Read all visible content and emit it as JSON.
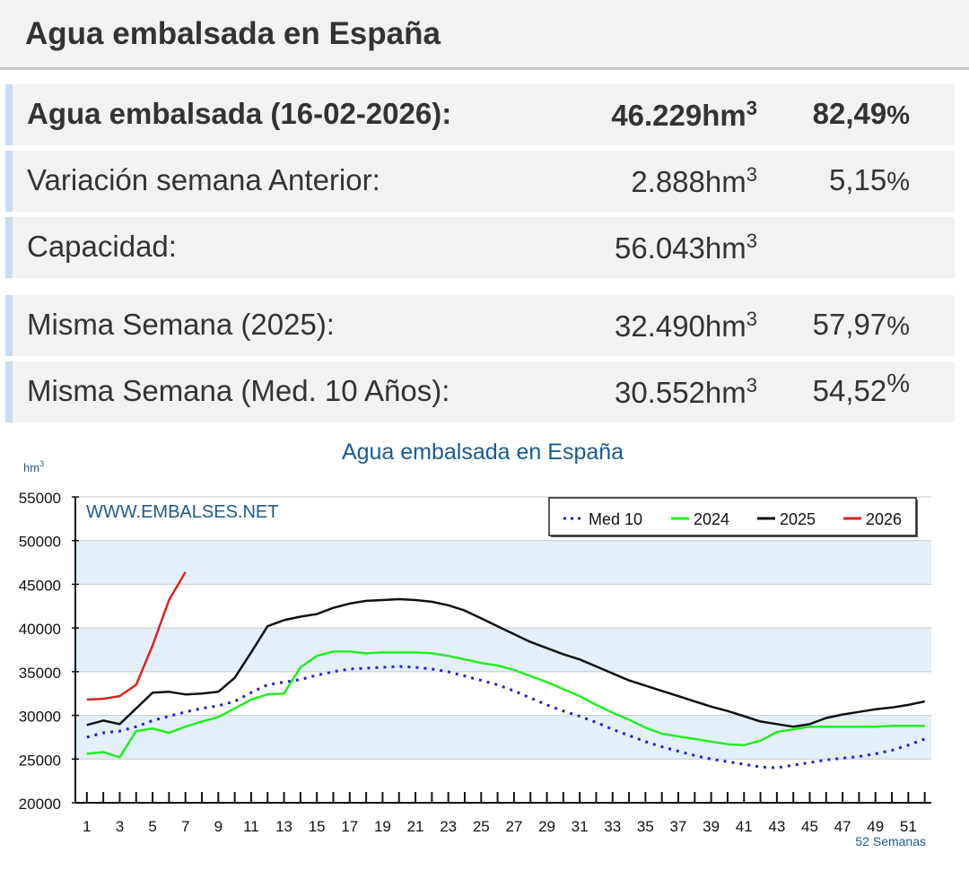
{
  "header": {
    "title": "Agua embalsada en España"
  },
  "stats": [
    {
      "label": "Agua embalsada (16-02-2026):",
      "value": "46.229",
      "unit": "hm",
      "unit_sup": "3",
      "percent": "82,49",
      "percent_sign": "%"
    },
    {
      "label": "Variación semana Anterior:",
      "value": "2.888",
      "unit": "hm",
      "unit_sup": "3",
      "percent": "5,15",
      "percent_sign": "%"
    },
    {
      "label": "Capacidad:",
      "value": "56.043",
      "unit": "hm",
      "unit_sup": "3",
      "percent": "",
      "percent_sign": ""
    },
    {
      "label": "Misma Semana (2025):",
      "value": "32.490",
      "unit": "hm",
      "unit_sup": "3",
      "percent": "57,97",
      "percent_sign": "%"
    },
    {
      "label": "Misma Semana (Med. 10 Años):",
      "value": "30.552",
      "unit": "hm",
      "unit_sup": "3",
      "percent": "54,52",
      "percent_sign": "%"
    }
  ],
  "chart_data": {
    "type": "line",
    "title": "Agua embalsada en España",
    "ylabel": "hm",
    "ylabel_sup": "3",
    "xlabel": "52 Semanas",
    "watermark": "WWW.EMBALSES.NET",
    "ylim": [
      20000,
      55000
    ],
    "xlim": [
      0.3,
      52.4
    ],
    "yticks": [
      20000,
      25000,
      30000,
      35000,
      40000,
      45000,
      50000,
      55000
    ],
    "xticks": [
      1,
      3,
      5,
      7,
      9,
      11,
      13,
      15,
      17,
      19,
      21,
      23,
      25,
      27,
      29,
      31,
      33,
      35,
      37,
      39,
      41,
      43,
      45,
      47,
      49,
      51
    ],
    "legend_position": "top-right",
    "colors": {
      "med10": "#2222cc",
      "y2024": "#22ee22",
      "y2025": "#111111",
      "y2026": "#dd2222",
      "band": "#e3f0fa",
      "grid": "#c8c8c8"
    },
    "series": [
      {
        "name": "Med 10",
        "key": "med10",
        "style": "dotted",
        "points": [
          [
            1,
            27500
          ],
          [
            2,
            28000
          ],
          [
            3,
            28200
          ],
          [
            4,
            28700
          ],
          [
            5,
            29400
          ],
          [
            6,
            29900
          ],
          [
            7,
            30400
          ],
          [
            8,
            30800
          ],
          [
            9,
            31100
          ],
          [
            10,
            31600
          ],
          [
            11,
            32600
          ],
          [
            12,
            33500
          ],
          [
            13,
            33800
          ],
          [
            14,
            34100
          ],
          [
            15,
            34600
          ],
          [
            16,
            35000
          ],
          [
            17,
            35300
          ],
          [
            18,
            35400
          ],
          [
            19,
            35500
          ],
          [
            20,
            35600
          ],
          [
            21,
            35500
          ],
          [
            22,
            35300
          ],
          [
            23,
            35000
          ],
          [
            24,
            34500
          ],
          [
            25,
            34000
          ],
          [
            26,
            33500
          ],
          [
            27,
            32800
          ],
          [
            28,
            32000
          ],
          [
            29,
            31200
          ],
          [
            30,
            30500
          ],
          [
            31,
            29900
          ],
          [
            32,
            29200
          ],
          [
            33,
            28400
          ],
          [
            34,
            27700
          ],
          [
            35,
            27000
          ],
          [
            36,
            26400
          ],
          [
            37,
            25900
          ],
          [
            38,
            25400
          ],
          [
            39,
            25000
          ],
          [
            40,
            24700
          ],
          [
            41,
            24400
          ],
          [
            42,
            24100
          ],
          [
            43,
            24000
          ],
          [
            44,
            24300
          ],
          [
            45,
            24600
          ],
          [
            46,
            24900
          ],
          [
            47,
            25100
          ],
          [
            48,
            25300
          ],
          [
            49,
            25600
          ],
          [
            50,
            26000
          ],
          [
            51,
            26600
          ],
          [
            52,
            27300
          ]
        ]
      },
      {
        "name": "2024",
        "key": "y2024",
        "style": "solid",
        "points": [
          [
            1,
            25600
          ],
          [
            2,
            25800
          ],
          [
            3,
            25200
          ],
          [
            4,
            28200
          ],
          [
            5,
            28500
          ],
          [
            6,
            28000
          ],
          [
            7,
            28700
          ],
          [
            8,
            29300
          ],
          [
            9,
            29800
          ],
          [
            10,
            30800
          ],
          [
            11,
            31800
          ],
          [
            12,
            32400
          ],
          [
            13,
            32500
          ],
          [
            14,
            35500
          ],
          [
            15,
            36800
          ],
          [
            16,
            37300
          ],
          [
            17,
            37300
          ],
          [
            18,
            37100
          ],
          [
            19,
            37200
          ],
          [
            20,
            37200
          ],
          [
            21,
            37200
          ],
          [
            22,
            37100
          ],
          [
            23,
            36800
          ],
          [
            24,
            36400
          ],
          [
            25,
            36000
          ],
          [
            26,
            35700
          ],
          [
            27,
            35200
          ],
          [
            28,
            34500
          ],
          [
            29,
            33800
          ],
          [
            30,
            33000
          ],
          [
            31,
            32200
          ],
          [
            32,
            31200
          ],
          [
            33,
            30300
          ],
          [
            34,
            29500
          ],
          [
            35,
            28600
          ],
          [
            36,
            27900
          ],
          [
            37,
            27600
          ],
          [
            38,
            27300
          ],
          [
            39,
            27000
          ],
          [
            40,
            26700
          ],
          [
            41,
            26600
          ],
          [
            42,
            27100
          ],
          [
            43,
            28100
          ],
          [
            44,
            28400
          ],
          [
            45,
            28700
          ],
          [
            46,
            28700
          ],
          [
            47,
            28700
          ],
          [
            48,
            28700
          ],
          [
            49,
            28700
          ],
          [
            50,
            28800
          ],
          [
            51,
            28800
          ],
          [
            52,
            28800
          ]
        ]
      },
      {
        "name": "2025",
        "key": "y2025",
        "style": "solid",
        "points": [
          [
            1,
            28900
          ],
          [
            2,
            29400
          ],
          [
            3,
            29000
          ],
          [
            4,
            30800
          ],
          [
            5,
            32600
          ],
          [
            6,
            32700
          ],
          [
            7,
            32400
          ],
          [
            8,
            32500
          ],
          [
            9,
            32700
          ],
          [
            10,
            34300
          ],
          [
            11,
            37200
          ],
          [
            12,
            40200
          ],
          [
            13,
            40900
          ],
          [
            14,
            41300
          ],
          [
            15,
            41600
          ],
          [
            16,
            42300
          ],
          [
            17,
            42800
          ],
          [
            18,
            43100
          ],
          [
            19,
            43200
          ],
          [
            20,
            43300
          ],
          [
            21,
            43200
          ],
          [
            22,
            43000
          ],
          [
            23,
            42600
          ],
          [
            24,
            42000
          ],
          [
            25,
            41100
          ],
          [
            26,
            40200
          ],
          [
            27,
            39300
          ],
          [
            28,
            38400
          ],
          [
            29,
            37700
          ],
          [
            30,
            37000
          ],
          [
            31,
            36400
          ],
          [
            32,
            35600
          ],
          [
            33,
            34800
          ],
          [
            34,
            34000
          ],
          [
            35,
            33400
          ],
          [
            36,
            32800
          ],
          [
            37,
            32200
          ],
          [
            38,
            31600
          ],
          [
            39,
            31000
          ],
          [
            40,
            30500
          ],
          [
            41,
            29900
          ],
          [
            42,
            29300
          ],
          [
            43,
            29000
          ],
          [
            44,
            28700
          ],
          [
            45,
            29000
          ],
          [
            46,
            29700
          ],
          [
            47,
            30100
          ],
          [
            48,
            30400
          ],
          [
            49,
            30700
          ],
          [
            50,
            30900
          ],
          [
            51,
            31200
          ],
          [
            52,
            31600
          ]
        ]
      },
      {
        "name": "2026",
        "key": "y2026",
        "style": "solid",
        "points": [
          [
            1,
            31800
          ],
          [
            2,
            31900
          ],
          [
            3,
            32200
          ],
          [
            4,
            33500
          ],
          [
            5,
            38000
          ],
          [
            6,
            43200
          ],
          [
            7,
            46400
          ]
        ]
      }
    ]
  }
}
